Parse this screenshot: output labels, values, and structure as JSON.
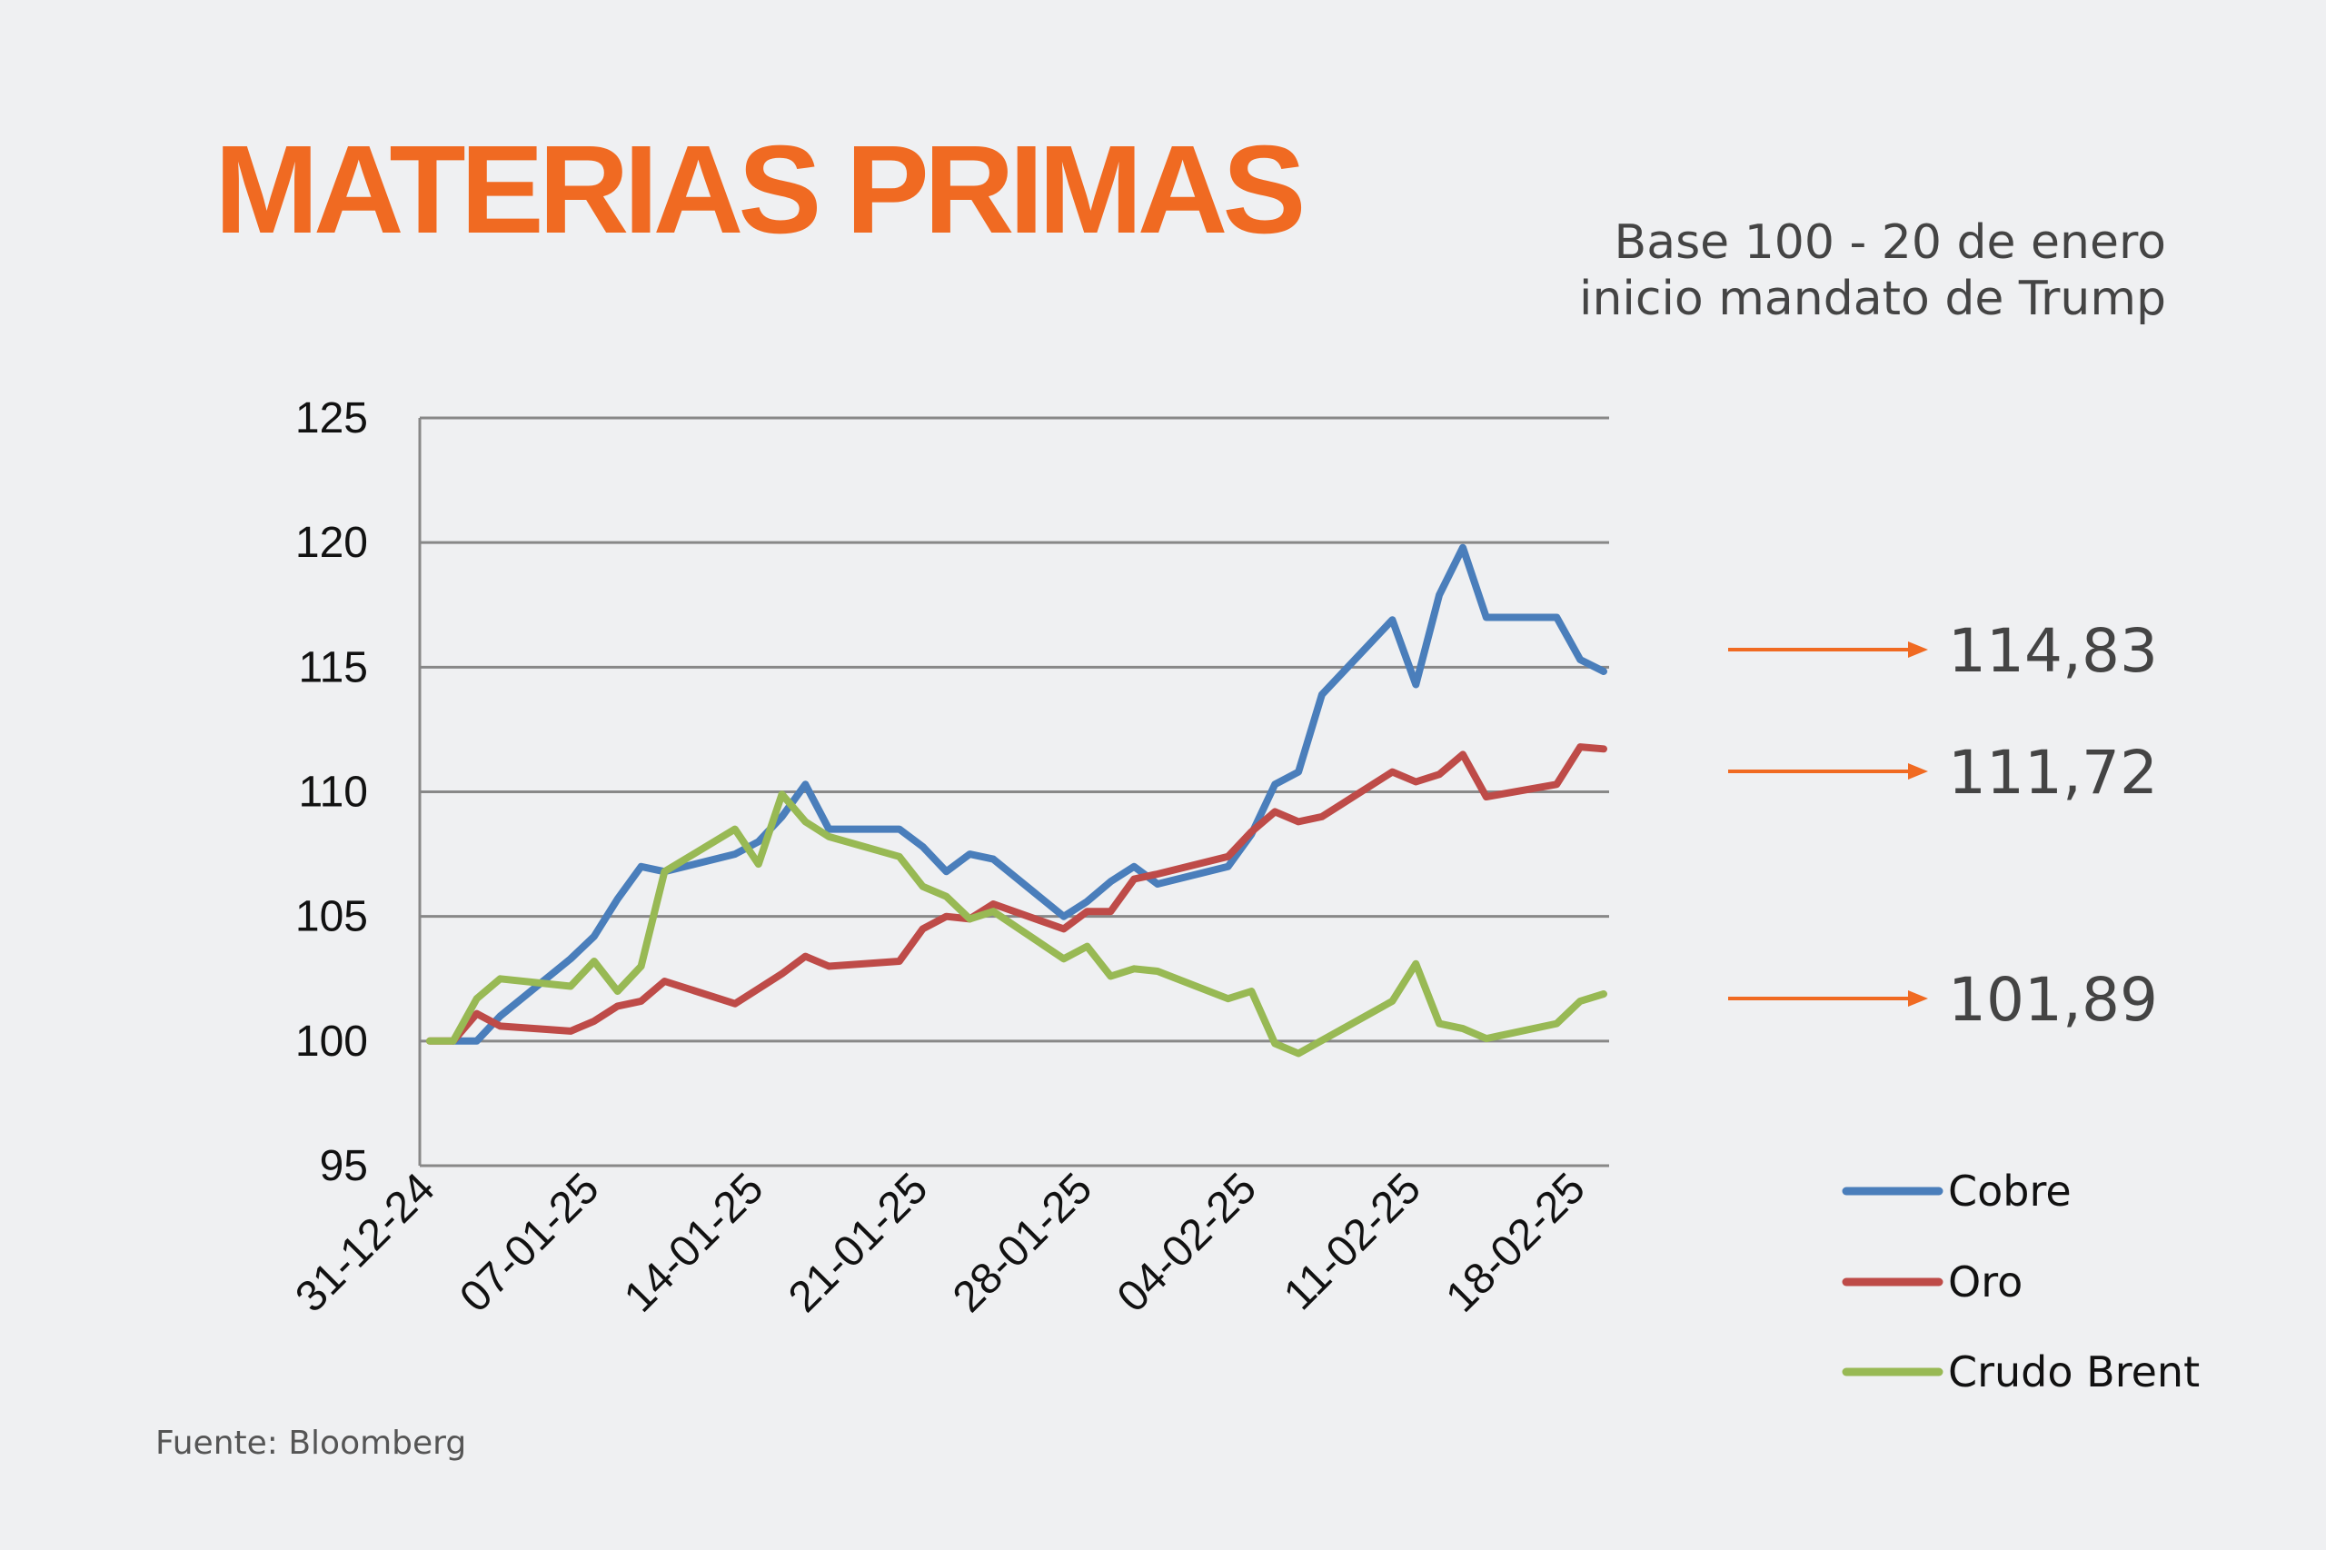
{
  "title": "MATERIAS PRIMAS",
  "subtitle": [
    "Base  100 - 20 de enero",
    "inicio mandato de Trump"
  ],
  "source": "Fuente: Bloomberg",
  "colors": {
    "accent": "#f06a22",
    "grid": "#888888"
  },
  "chart_data": {
    "type": "line",
    "title": "MATERIAS PRIMAS",
    "xlabel": "",
    "ylabel": "",
    "ylim": [
      95,
      125
    ],
    "yticks": [
      95,
      100,
      105,
      110,
      115,
      120,
      125
    ],
    "x_unit": "days since 31-12-24",
    "xticks": [
      {
        "day": 0,
        "label": "31-12-24"
      },
      {
        "day": 7,
        "label": "07-01-25"
      },
      {
        "day": 14,
        "label": "14-01-25"
      },
      {
        "day": 21,
        "label": "21-01-25"
      },
      {
        "day": 28,
        "label": "28-01-25"
      },
      {
        "day": 35,
        "label": "04-02-25"
      },
      {
        "day": 42,
        "label": "11-02-25"
      },
      {
        "day": 49,
        "label": "18-02-25"
      }
    ],
    "grid": true,
    "legend": "right",
    "series": [
      {
        "name": "Cobre",
        "color": "#4a7ebb",
        "end_label": "114,83",
        "x": [
          1,
          2,
          3,
          6,
          7,
          8,
          9,
          10,
          13,
          14,
          15,
          16,
          17,
          20,
          21,
          22,
          23,
          24,
          27,
          28,
          29,
          30,
          31,
          34,
          35,
          36,
          37,
          38,
          41,
          42,
          43,
          44,
          45,
          48,
          49,
          50
        ],
        "y": [
          100,
          100,
          101.0,
          103.3,
          104.2,
          105.7,
          107.0,
          106.8,
          107.5,
          108.0,
          109.0,
          110.3,
          108.5,
          108.5,
          107.8,
          106.8,
          107.5,
          107.3,
          105.0,
          105.6,
          106.4,
          107.0,
          106.3,
          107.0,
          108.3,
          110.3,
          110.8,
          113.9,
          116.9,
          114.3,
          117.9,
          119.8,
          117.0,
          117.0,
          115.3,
          114.83
        ]
      },
      {
        "name": "Oro",
        "color": "#be4b48",
        "end_label": "111,72",
        "x": [
          0,
          1,
          2,
          3,
          6,
          7,
          8,
          9,
          10,
          13,
          14,
          15,
          16,
          17,
          20,
          21,
          22,
          23,
          24,
          27,
          28,
          29,
          30,
          31,
          34,
          35,
          36,
          37,
          38,
          41,
          42,
          43,
          44,
          45,
          48,
          49,
          50
        ],
        "y": [
          100,
          100,
          101.1,
          100.6,
          100.4,
          100.8,
          101.4,
          101.6,
          102.4,
          101.5,
          102.1,
          102.7,
          103.4,
          103.0,
          103.2,
          104.5,
          105.0,
          104.9,
          105.5,
          104.5,
          105.2,
          105.2,
          106.5,
          106.7,
          107.4,
          108.4,
          109.2,
          108.8,
          109.0,
          110.8,
          110.4,
          110.7,
          111.5,
          109.8,
          110.3,
          111.8,
          111.72
        ]
      },
      {
        "name": "Crudo Brent",
        "color": "#98b954",
        "end_label": "101,89",
        "x": [
          0,
          1,
          2,
          3,
          6,
          7,
          8,
          9,
          10,
          13,
          14,
          15,
          16,
          17,
          20,
          21,
          22,
          23,
          24,
          27,
          28,
          29,
          30,
          31,
          34,
          35,
          36,
          37,
          41,
          42,
          43,
          44,
          45,
          48,
          49,
          50
        ],
        "y": [
          100,
          100,
          101.7,
          102.5,
          102.2,
          103.2,
          102.0,
          103.0,
          106.8,
          108.5,
          107.1,
          109.9,
          108.8,
          108.2,
          107.4,
          106.2,
          105.8,
          104.9,
          105.2,
          103.3,
          103.8,
          102.6,
          102.9,
          102.8,
          101.7,
          102.0,
          99.9,
          99.5,
          101.6,
          103.1,
          100.7,
          100.5,
          100.1,
          100.7,
          101.6,
          101.89
        ]
      }
    ]
  }
}
